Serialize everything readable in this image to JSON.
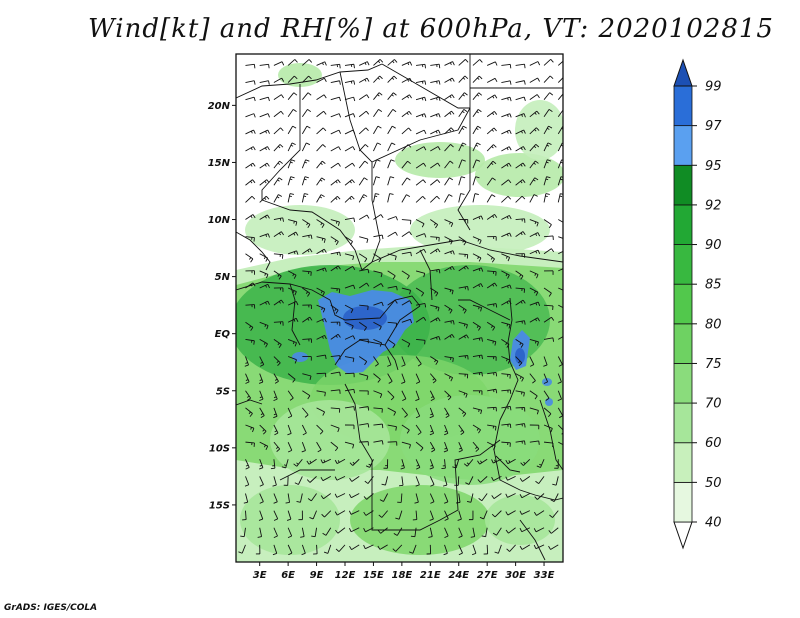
{
  "title": "Wind[kt] and RH[%] at 600hPa, VT: 2020102815",
  "credit": "GrADS: IGES/COLA",
  "map": {
    "lat_labels": [
      "20N",
      "15N",
      "10N",
      "5N",
      "EQ",
      "5S",
      "10S",
      "15S"
    ],
    "lon_labels": [
      "3E",
      "6E",
      "9E",
      "12E",
      "15E",
      "18E",
      "21E",
      "24E",
      "27E",
      "30E",
      "33E"
    ],
    "lat_values": [
      20,
      15,
      10,
      5,
      0,
      -5,
      -10,
      -15
    ],
    "lon_values": [
      3,
      6,
      9,
      12,
      15,
      18,
      21,
      24,
      27,
      30,
      33
    ],
    "lon_range": [
      0.5,
      35
    ],
    "lat_range": [
      -20,
      24.5
    ]
  },
  "colorbar": {
    "labels": [
      "40",
      "50",
      "60",
      "70",
      "75",
      "80",
      "85",
      "90",
      "92",
      "95",
      "97",
      "99"
    ],
    "colors": [
      "#ffffff",
      "#e6f8e0",
      "#c8f0bc",
      "#a6e69a",
      "#8adc7c",
      "#6ed262",
      "#52c84c",
      "#38b840",
      "#22a834",
      "#108c24",
      "#5aa0f0",
      "#2a6ed8",
      "#1c50b4"
    ]
  },
  "colors": {
    "green_light": "#cdf0c4",
    "green_mid": "#7ed66a",
    "green_dark": "#3cb34a",
    "blue": "#4a8ae6",
    "blue_dark": "#2a60c8"
  }
}
